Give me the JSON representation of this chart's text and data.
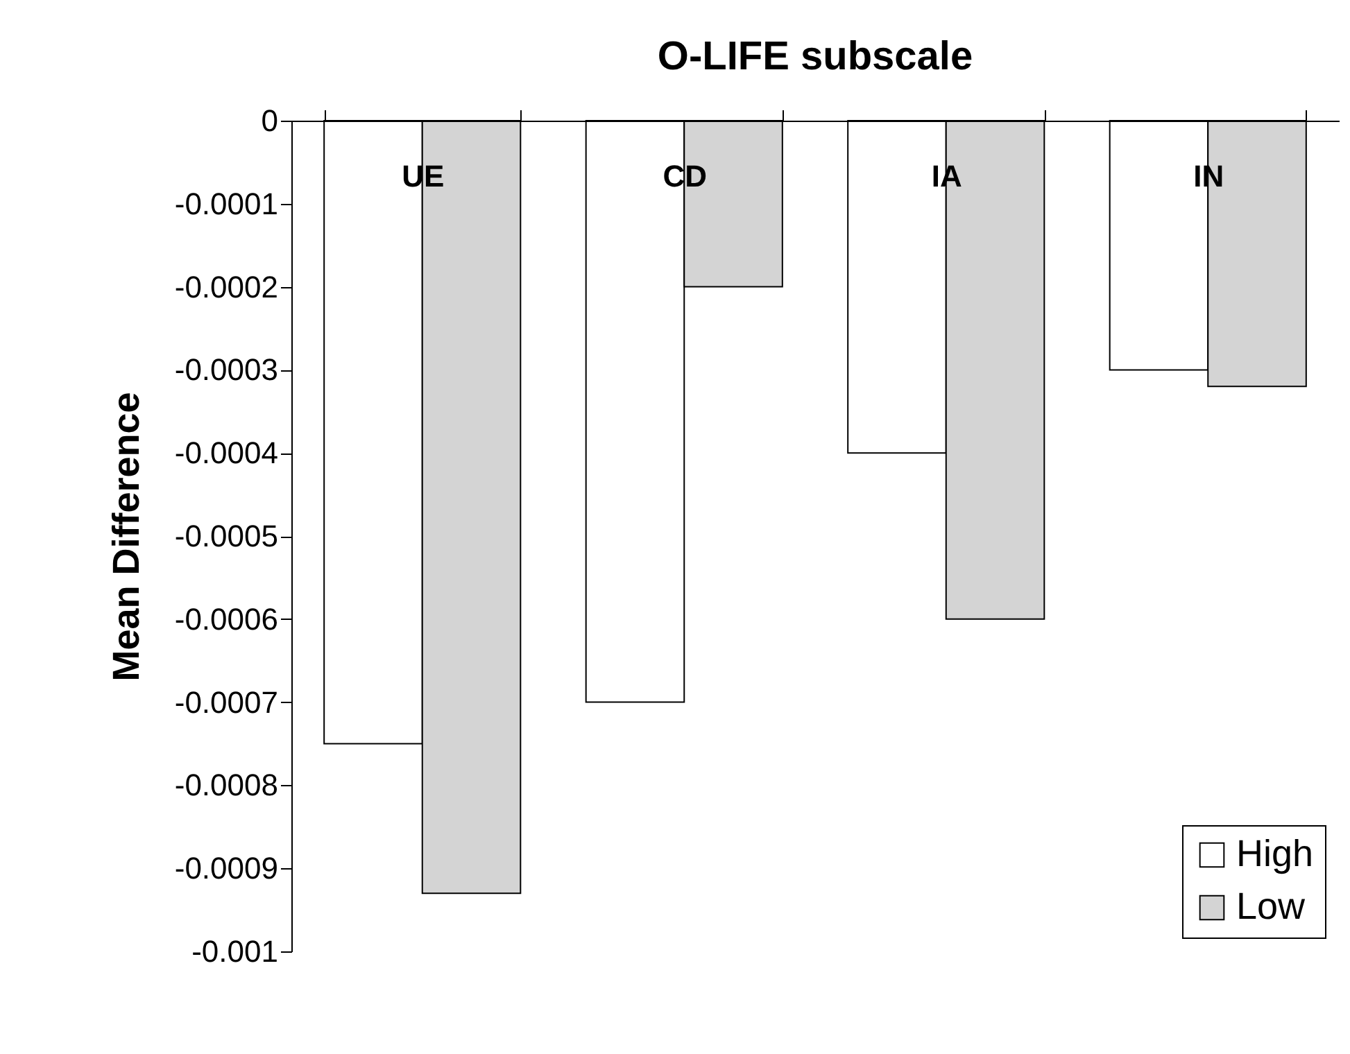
{
  "chart_data": {
    "type": "bar",
    "title": "O-LIFE subscale",
    "ylabel": "Mean Difference",
    "categories": [
      "UE",
      "CD",
      "IA",
      "IN"
    ],
    "series": [
      {
        "name": "High",
        "color": "#ffffff",
        "values": [
          -0.00075,
          -0.0007,
          -0.0004,
          -0.0003
        ]
      },
      {
        "name": "Low",
        "color": "#d4d4d4",
        "values": [
          -0.00093,
          -0.0002,
          -0.0006,
          -0.00032
        ]
      }
    ],
    "ylim": [
      -0.001,
      0
    ],
    "yticks": [
      -0.001,
      -0.0009,
      -0.0008,
      -0.0007,
      -0.0006,
      -0.0005,
      -0.0004,
      -0.0003,
      -0.0002,
      -0.0001,
      0
    ],
    "grid": false,
    "legend": "bottom right"
  }
}
